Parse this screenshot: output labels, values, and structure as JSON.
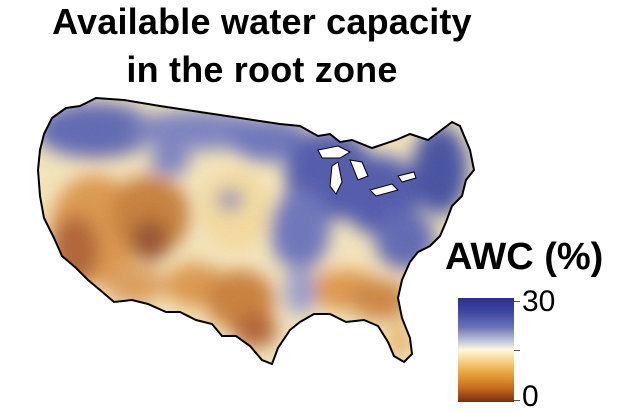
{
  "title": {
    "line1": "Available water capacity",
    "line2": "in the root zone"
  },
  "legend": {
    "title": "AWC (%)",
    "max_label": "30",
    "min_label": "0",
    "range": [
      0,
      30
    ],
    "colormap": [
      "#7a2e10",
      "#c86e1e",
      "#eaa53c",
      "#f6d48c",
      "#fff9dc",
      "#c7c8dc",
      "#6a72b8",
      "#3b45a0",
      "#2c2f8a"
    ]
  },
  "map": {
    "region": "contiguous-united-states",
    "variable": "available-water-capacity",
    "colors": {
      "high": "#3a4198",
      "mid": "#fbf4d8",
      "low": "#b8601e",
      "outline": "#000000"
    }
  }
}
